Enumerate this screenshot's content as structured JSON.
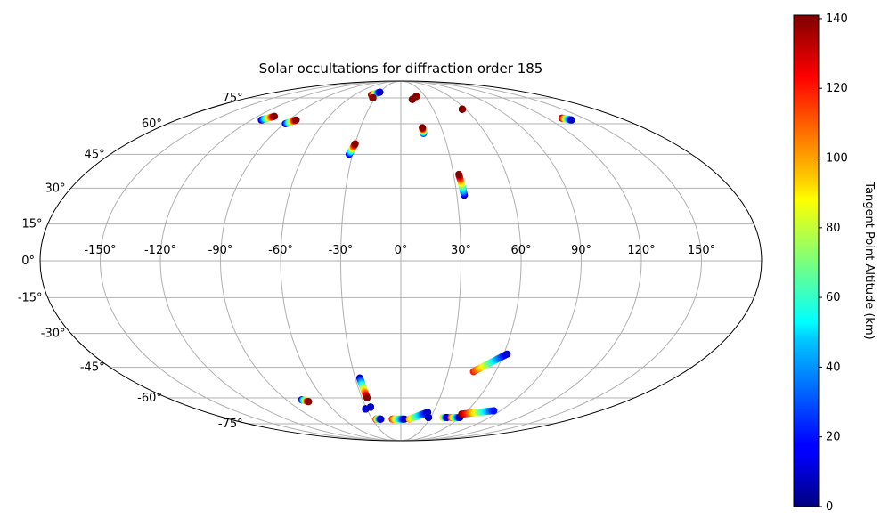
{
  "chart_data": {
    "type": "scatter",
    "projection": "Mollweide",
    "title": "Solar occultations for diffraction order 185",
    "xlabel": "",
    "ylabel": "",
    "colorbar_label": "Tangent Point Altitude (km)",
    "colormap": "jet",
    "color_range": [
      0,
      141
    ],
    "colorbar_ticks": [
      "0",
      "20",
      "40",
      "60",
      "80",
      "100",
      "120",
      "140"
    ],
    "lon_ticks": [
      "-150°",
      "-120°",
      "-90°",
      "-60°",
      "-30°",
      "0°",
      "30°",
      "60°",
      "90°",
      "120°",
      "150°"
    ],
    "lat_ticks": [
      "75°",
      "60°",
      "45°",
      "30°",
      "15°",
      "0°",
      "-15°",
      "-30°",
      "-45°",
      "-60°",
      "-75°"
    ],
    "grid": true,
    "series": [
      {
        "lon_start": -112,
        "lon_end": -106,
        "lat_start": 62,
        "lat_end": 64,
        "alt_start": 10,
        "alt_end": 140
      },
      {
        "lon_start": -89,
        "lon_end": -84,
        "lat_start": 60,
        "lat_end": 62,
        "alt_start": 10,
        "alt_end": 140
      },
      {
        "lon_start": -38,
        "lon_end": -30,
        "lat_start": 77,
        "lat_end": 79,
        "alt_start": 140,
        "alt_end": 10
      },
      {
        "lon_start": -33,
        "lon_end": -33,
        "lat_start": 75,
        "lat_end": 75,
        "alt_start": 140,
        "alt_end": 140
      },
      {
        "lon_start": -32,
        "lon_end": -30,
        "lat_start": 45,
        "lat_end": 50,
        "alt_start": 10,
        "alt_end": 140
      },
      {
        "lon_start": 13,
        "lon_end": 13,
        "lat_start": 74,
        "lat_end": 74,
        "alt_start": 140,
        "alt_end": 140
      },
      {
        "lon_start": 19,
        "lon_end": 19,
        "lat_start": 76,
        "lat_end": 76,
        "alt_start": 140,
        "alt_end": 140
      },
      {
        "lon_start": 16,
        "lon_end": 16,
        "lat_start": 55,
        "lat_end": 58,
        "alt_start": 20,
        "alt_end": 140
      },
      {
        "lon_start": 34,
        "lon_end": 33,
        "lat_start": 27,
        "lat_end": 36,
        "alt_start": 10,
        "alt_end": 140
      },
      {
        "lon_start": 57,
        "lon_end": 57,
        "lat_start": 68,
        "lat_end": 68,
        "alt_start": 140,
        "alt_end": 140
      },
      {
        "lon_start": 132,
        "lon_end": 137,
        "lat_start": 63,
        "lat_end": 62,
        "alt_start": 140,
        "alt_end": 10
      },
      {
        "lon_start": -78,
        "lon_end": -74,
        "lat_start": -61,
        "lat_end": -62,
        "alt_start": 10,
        "alt_end": 140
      },
      {
        "lon_start": -27,
        "lon_end": -26,
        "lat_start": -50,
        "lat_end": -60,
        "alt_start": 10,
        "alt_end": 140
      },
      {
        "lon_start": -31,
        "lon_end": -31,
        "lat_start": -66,
        "lat_end": -66,
        "alt_start": 10,
        "alt_end": 10
      },
      {
        "lon_start": -26,
        "lon_end": -26,
        "lat_start": -65,
        "lat_end": -65,
        "alt_start": 10,
        "alt_end": 10
      },
      {
        "lon_start": -26,
        "lon_end": -21,
        "lat_start": -72,
        "lat_end": -72,
        "alt_start": 120,
        "alt_end": 10
      },
      {
        "lon_start": -9,
        "lon_end": 4,
        "lat_start": -72,
        "lat_end": -72,
        "alt_start": 120,
        "alt_end": 10
      },
      {
        "lon_start": 9,
        "lon_end": 25,
        "lat_start": -72,
        "lat_end": -68,
        "alt_start": 100,
        "alt_end": 10
      },
      {
        "lon_start": 28,
        "lon_end": 28,
        "lat_start": -71,
        "lat_end": -71,
        "alt_start": 10,
        "alt_end": 10
      },
      {
        "lon_start": 43,
        "lon_end": 47,
        "lat_start": -71,
        "lat_end": -71,
        "alt_start": 100,
        "alt_end": 10
      },
      {
        "lon_start": 51,
        "lon_end": 60,
        "lat_start": -71,
        "lat_end": -71,
        "alt_start": 120,
        "alt_end": 10
      },
      {
        "lon_start": 58,
        "lon_end": 84,
        "lat_start": -69,
        "lat_end": -67,
        "alt_start": 140,
        "alt_end": 20
      },
      {
        "lon_start": 46,
        "lon_end": 62,
        "lat_start": -47,
        "lat_end": -39,
        "alt_start": 120,
        "alt_end": 10
      }
    ]
  }
}
